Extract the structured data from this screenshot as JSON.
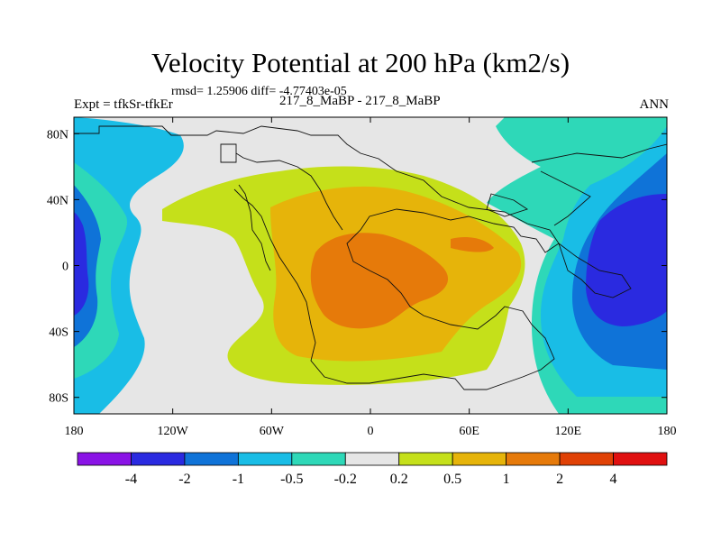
{
  "title": "Velocity Potential at 200 hPa (km2/s)",
  "stats_line": "rmsd= 1.25906 diff= -4.77403e-05",
  "left_label": "Expt = tfkSr-tfkEr",
  "center_label": "217_8_MaBP - 217_8_MaBP",
  "right_label": "ANN",
  "chart_data": {
    "type": "filled-contour-map",
    "title": "Velocity Potential at 200 hPa (km2/s)",
    "xlim": [
      -180,
      180
    ],
    "ylim": [
      -90,
      90
    ],
    "x_ticks": [
      {
        "value": -180,
        "label": "180"
      },
      {
        "value": -120,
        "label": "120W"
      },
      {
        "value": -60,
        "label": "60W"
      },
      {
        "value": 0,
        "label": "0"
      },
      {
        "value": 60,
        "label": "60E"
      },
      {
        "value": 120,
        "label": "120E"
      },
      {
        "value": 180,
        "label": "180"
      }
    ],
    "y_ticks": [
      {
        "value": 80,
        "label": "80N"
      },
      {
        "value": 40,
        "label": "40N"
      },
      {
        "value": 0,
        "label": "0"
      },
      {
        "value": -40,
        "label": "40S"
      },
      {
        "value": -80,
        "label": "80S"
      }
    ],
    "colorbar": {
      "levels": [
        -4,
        -2,
        -1,
        -0.5,
        -0.2,
        0.2,
        0.5,
        1,
        2,
        4
      ],
      "labels": [
        "-4",
        "-2",
        "-1",
        "-0.5",
        "-0.2",
        "0.2",
        "0.5",
        "1",
        "2",
        "4"
      ],
      "colors": [
        "#8a13e6",
        "#2a2ae0",
        "#0f73d8",
        "#19bde6",
        "#2ed8b8",
        "#e6e6e6",
        "#c5e01a",
        "#e6b40a",
        "#e67a0a",
        "#e04105",
        "#e01010"
      ]
    },
    "field": {
      "positive_center": {
        "lon": -10,
        "lat": -5,
        "peak": 2.5
      },
      "negative_centers": [
        {
          "lon": 165,
          "lat": 0,
          "peak": -2.5
        },
        {
          "lon": -178,
          "lat": 0,
          "peak": -2.0
        }
      ]
    }
  }
}
